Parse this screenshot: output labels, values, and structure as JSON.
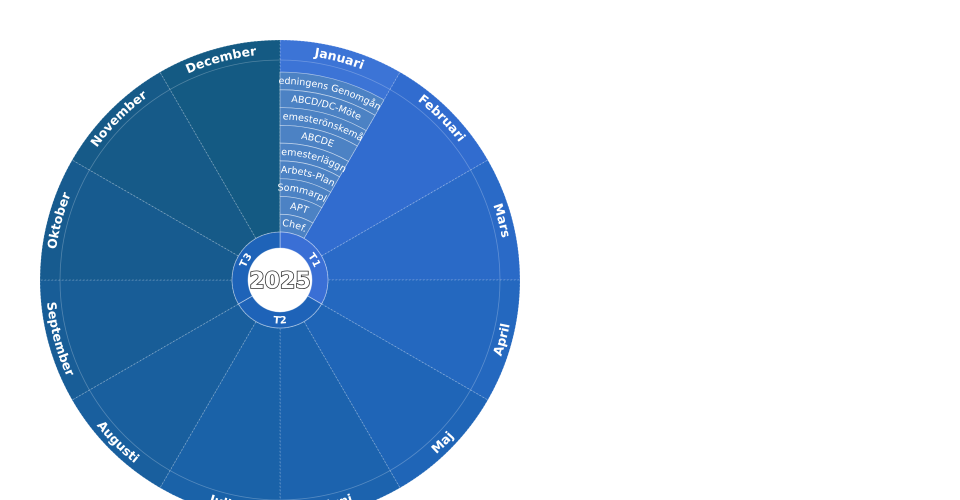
{
  "chart_data": {
    "type": "sunburst",
    "center": {
      "label": "2025"
    },
    "quarters": [
      {
        "label": "T1",
        "start_month": 0,
        "span": 4
      },
      {
        "label": "T2",
        "start_month": 4,
        "span": 4
      },
      {
        "label": "T3",
        "start_month": 8,
        "span": 4
      }
    ],
    "months": [
      {
        "label": "Januari",
        "color": "#3c74d6"
      },
      {
        "label": "Februari",
        "color": "#316ccf"
      },
      {
        "label": "Mars",
        "color": "#2a6ac7"
      },
      {
        "label": "April",
        "color": "#2468bf"
      },
      {
        "label": "Maj",
        "color": "#1f65b7"
      },
      {
        "label": "Juni",
        "color": "#1c63ae"
      },
      {
        "label": "Juli",
        "color": "#1a62a8"
      },
      {
        "label": "Augusti",
        "color": "#195f9e"
      },
      {
        "label": "September",
        "color": "#185d97"
      },
      {
        "label": "Oktober",
        "color": "#175b8f"
      },
      {
        "label": "November",
        "color": "#165a88"
      },
      {
        "label": "December",
        "color": "#145a83"
      }
    ],
    "items": [
      {
        "month": "Januari",
        "label": "Ledningens Genomgång"
      },
      {
        "month": "Januari",
        "label": "ABCD/DC-Möte"
      },
      {
        "month": "Januari",
        "label": "Semesterönskemål"
      },
      {
        "month": "Januari",
        "label": "ABCDE"
      },
      {
        "month": "Januari",
        "label": "Semesterläggn."
      },
      {
        "month": "Januari",
        "label": "Arbets-Plan"
      },
      {
        "month": "Januari",
        "label": "Sommarpl."
      },
      {
        "month": "Januari",
        "label": "APT"
      },
      {
        "month": "Januari",
        "label": "Chef."
      }
    ],
    "colors": {
      "item_ring": "#4c82c4",
      "quarter_ring": "#1e63b8",
      "quarter_t1": "#3a6fd5",
      "center_fill": "#ffffff"
    }
  }
}
